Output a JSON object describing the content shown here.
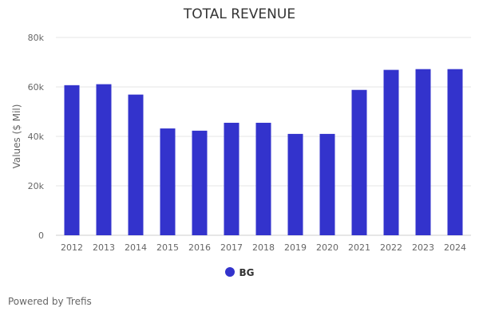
{
  "chart_data": {
    "type": "bar",
    "title": "TOTAL REVENUE",
    "ylabel": "Values ($ Mil)",
    "xlabel": "",
    "categories": [
      "2012",
      "2013",
      "2014",
      "2015",
      "2016",
      "2017",
      "2018",
      "2019",
      "2020",
      "2021",
      "2022",
      "2023",
      "2024"
    ],
    "series": [
      {
        "name": "BG",
        "values": [
          60.7,
          61.1,
          56.9,
          43.2,
          42.3,
          45.5,
          45.5,
          41.0,
          41.0,
          58.8,
          66.9,
          67.2,
          67.2
        ],
        "color": "#3333CC"
      }
    ],
    "ylim": [
      0,
      80
    ],
    "yticks": [
      0,
      20,
      40,
      60,
      80
    ],
    "ytick_labels": [
      "0",
      "20k",
      "40k",
      "60k",
      "80k"
    ],
    "grid": true,
    "legend": "bottom"
  },
  "footer": "Powered by Trefis"
}
